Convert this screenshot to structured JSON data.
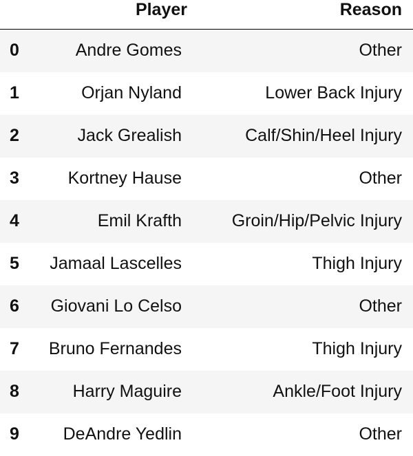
{
  "table": {
    "columns": [
      "",
      "Player",
      "Reason"
    ],
    "rows": [
      {
        "index": "0",
        "player": "Andre Gomes",
        "reason": "Other"
      },
      {
        "index": "1",
        "player": "Orjan Nyland",
        "reason": "Lower Back Injury"
      },
      {
        "index": "2",
        "player": "Jack Grealish",
        "reason": "Calf/Shin/Heel Injury"
      },
      {
        "index": "3",
        "player": "Kortney Hause",
        "reason": "Other"
      },
      {
        "index": "4",
        "player": "Emil Krafth",
        "reason": "Groin/Hip/Pelvic Injury"
      },
      {
        "index": "5",
        "player": "Jamaal Lascelles",
        "reason": "Thigh Injury"
      },
      {
        "index": "6",
        "player": "Giovani Lo Celso",
        "reason": "Other"
      },
      {
        "index": "7",
        "player": "Bruno Fernandes",
        "reason": "Thigh Injury"
      },
      {
        "index": "8",
        "player": "Harry Maguire",
        "reason": "Ankle/Foot Injury"
      },
      {
        "index": "9",
        "player": "DeAndre Yedlin",
        "reason": "Other"
      }
    ]
  }
}
